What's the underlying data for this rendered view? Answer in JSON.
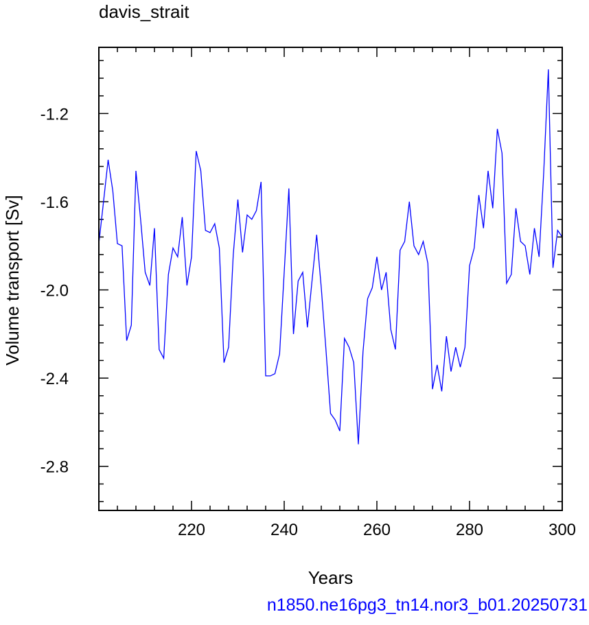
{
  "chart_data": {
    "type": "line",
    "title": "davis_strait",
    "xlabel": "Years",
    "ylabel": "Volume transport [Sv]",
    "xlim": [
      200,
      300
    ],
    "ylim": [
      -3.0,
      -0.9
    ],
    "xticks": [
      220,
      240,
      260,
      280,
      300
    ],
    "xtick_labels": [
      "220",
      "240",
      "260",
      "280",
      "300"
    ],
    "yticks": [
      -1.2,
      -1.6,
      -2.0,
      -2.4,
      -2.8
    ],
    "ytick_labels": [
      "-1.2",
      "-1.6",
      "-2.0",
      "-2.4",
      "-2.8"
    ],
    "grid": false,
    "series": [
      {
        "color": "#0000ff",
        "x": [
          200,
          201,
          202,
          203,
          204,
          205,
          206,
          207,
          208,
          209,
          210,
          211,
          212,
          213,
          214,
          215,
          216,
          217,
          218,
          219,
          220,
          221,
          222,
          223,
          224,
          225,
          226,
          227,
          228,
          229,
          230,
          231,
          232,
          233,
          234,
          235,
          236,
          237,
          238,
          239,
          240,
          241,
          242,
          243,
          244,
          245,
          246,
          247,
          248,
          249,
          250,
          251,
          252,
          253,
          254,
          255,
          256,
          257,
          258,
          259,
          260,
          261,
          262,
          263,
          264,
          265,
          266,
          267,
          268,
          269,
          270,
          271,
          272,
          273,
          274,
          275,
          276,
          277,
          278,
          279,
          280,
          281,
          282,
          283,
          284,
          285,
          286,
          287,
          288,
          289,
          290,
          291,
          292,
          293,
          294,
          295,
          296,
          297,
          298,
          299,
          300
        ],
        "y": [
          -1.79,
          -1.6,
          -1.41,
          -1.55,
          -1.79,
          -1.8,
          -2.23,
          -2.16,
          -1.46,
          -1.68,
          -1.92,
          -1.98,
          -1.72,
          -2.27,
          -2.31,
          -1.93,
          -1.81,
          -1.85,
          -1.67,
          -1.98,
          -1.85,
          -1.37,
          -1.46,
          -1.73,
          -1.74,
          -1.7,
          -1.81,
          -2.33,
          -2.26,
          -1.84,
          -1.59,
          -1.83,
          -1.66,
          -1.68,
          -1.64,
          -1.51,
          -2.39,
          -2.39,
          -2.38,
          -2.29,
          -1.92,
          -1.54,
          -2.2,
          -1.96,
          -1.92,
          -2.17,
          -1.96,
          -1.75,
          -1.99,
          -2.27,
          -2.56,
          -2.59,
          -2.64,
          -2.22,
          -2.26,
          -2.33,
          -2.7,
          -2.28,
          -2.04,
          -1.99,
          -1.85,
          -2.0,
          -1.92,
          -2.18,
          -2.27,
          -1.82,
          -1.78,
          -1.6,
          -1.8,
          -1.84,
          -1.78,
          -1.88,
          -2.45,
          -2.34,
          -2.46,
          -2.21,
          -2.37,
          -2.26,
          -2.35,
          -2.26,
          -1.89,
          -1.81,
          -1.57,
          -1.72,
          -1.46,
          -1.63,
          -1.27,
          -1.38,
          -1.97,
          -1.93,
          -1.63,
          -1.78,
          -1.8,
          -1.93,
          -1.72,
          -1.85,
          -1.47,
          -1.0,
          -1.9,
          -1.73,
          -1.76
        ]
      }
    ]
  },
  "footer_text": "n1850.ne16pg3_tn14.nor3_b01.20250731"
}
